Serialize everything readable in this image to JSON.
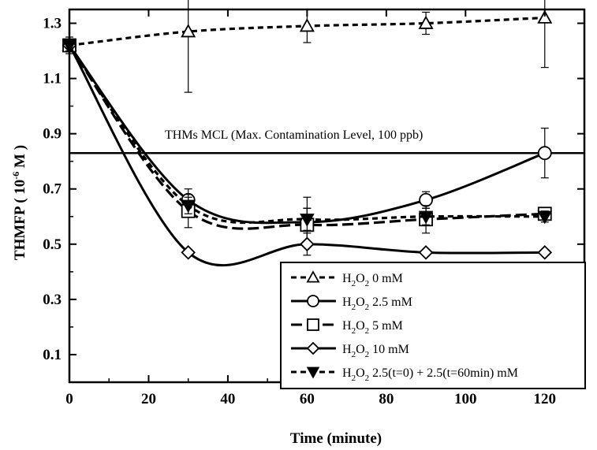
{
  "chart_data": {
    "type": "line",
    "xlabel": "Time (minute)",
    "ylabel": "THMFP ( 10",
    "ylabel_sup": "-6",
    "ylabel_unit": " M )",
    "xlim": [
      0,
      130
    ],
    "ylim": [
      0,
      1.35
    ],
    "xticks": [
      0,
      20,
      40,
      60,
      80,
      100,
      120
    ],
    "xtick_labels": [
      "0",
      "20",
      "40",
      "60",
      "80",
      "100",
      "120"
    ],
    "yticks": [
      0.1,
      0.3,
      0.5,
      0.7,
      0.9,
      1.1,
      1.3
    ],
    "ytick_labels": [
      "0.1",
      "0.3",
      "0.5",
      "0.7",
      "0.9",
      "1.1",
      "1.3"
    ],
    "grid": false,
    "legend_position": "bottom-right",
    "annotation": {
      "text": "THMs MCL (Max. Contamination Level, 100 ppb)",
      "y": 0.83
    },
    "series": [
      {
        "name": "H2O2 0 mM",
        "legend": {
          "pre": "H",
          "s1": "2",
          "mid": "O",
          "s2": "2",
          "post": " 0 mM"
        },
        "marker": "triangle",
        "line": "short-dash",
        "x": [
          0,
          30,
          60,
          90,
          120
        ],
        "y": [
          1.22,
          1.27,
          1.29,
          1.3,
          1.32
        ],
        "err": [
          0.03,
          0.22,
          0.06,
          0.04,
          0.18
        ]
      },
      {
        "name": "H2O2 2.5 mM",
        "legend": {
          "pre": "H",
          "s1": "2",
          "mid": "O",
          "s2": "2",
          "post": " 2.5 mM"
        },
        "marker": "circle",
        "line": "solid",
        "x": [
          0,
          30,
          60,
          90,
          120
        ],
        "y": [
          1.22,
          0.66,
          0.58,
          0.66,
          0.83
        ],
        "err": [
          0.02,
          0.04,
          0.09,
          0.03,
          0.09
        ]
      },
      {
        "name": "H2O2 5 mM",
        "legend": {
          "pre": "H",
          "s1": "2",
          "mid": "O",
          "s2": "2",
          "post": " 5 mM"
        },
        "marker": "square",
        "line": "long-dash",
        "x": [
          0,
          30,
          60,
          90,
          120
        ],
        "y": [
          1.22,
          0.62,
          0.57,
          0.59,
          0.61
        ],
        "err": [
          0.02,
          0.06,
          0.06,
          0.05,
          0.02
        ]
      },
      {
        "name": "H2O2 10 mM",
        "legend": {
          "pre": "H",
          "s1": "2",
          "mid": "O",
          "s2": "2",
          "post": " 10 mM"
        },
        "marker": "diamond",
        "line": "solid",
        "x": [
          0,
          30,
          60,
          90,
          120
        ],
        "y": [
          1.22,
          0.47,
          0.5,
          0.47,
          0.47
        ],
        "err": [
          0.02,
          0.01,
          0.04,
          0.01,
          0.01
        ]
      },
      {
        "name": "H2O2 2.5(t=0) + 2.5(t=60min) mM",
        "legend": {
          "pre": "H",
          "s1": "2",
          "mid": "O",
          "s2": "2",
          "post": " 2.5(t=0) + 2.5(t=60min) mM"
        },
        "marker": "triangle-down",
        "line": "short-dash",
        "x": [
          0,
          30,
          60,
          90,
          120
        ],
        "y": [
          1.22,
          0.64,
          0.59,
          0.6,
          0.6
        ],
        "err": [
          0.02,
          0.03,
          0.04,
          0.03,
          0.02
        ]
      }
    ]
  }
}
